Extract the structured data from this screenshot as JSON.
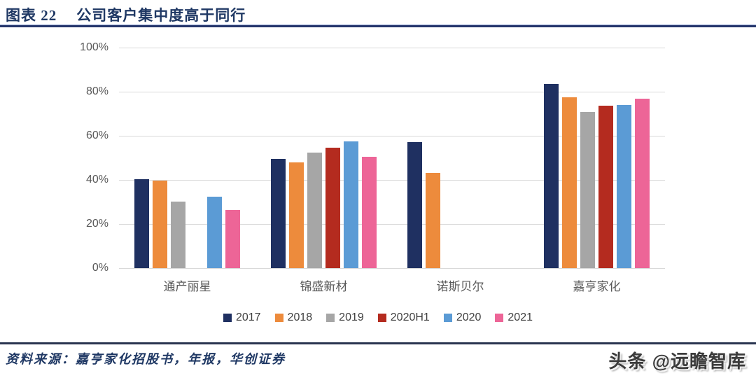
{
  "header": {
    "figure_label": "图表 22",
    "title": "公司客户集中度高于同行"
  },
  "chart_data": {
    "type": "bar",
    "title": "公司客户集中度高于同行",
    "categories": [
      "通产丽星",
      "锦盛新材",
      "诺斯贝尔",
      "嘉亨家化"
    ],
    "series": [
      {
        "name": "2017",
        "color": "#1f3061",
        "values": [
          40.3,
          49.6,
          57.3,
          83.5
        ]
      },
      {
        "name": "2018",
        "color": "#ed8b3c",
        "values": [
          39.7,
          48.0,
          43.1,
          77.4
        ]
      },
      {
        "name": "2019",
        "color": "#a6a6a6",
        "values": [
          30.2,
          52.5,
          null,
          70.8
        ]
      },
      {
        "name": "2020H1",
        "color": "#b42b1f",
        "values": [
          null,
          54.5,
          null,
          73.6
        ]
      },
      {
        "name": "2020",
        "color": "#5b9bd5",
        "values": [
          32.4,
          57.6,
          null,
          73.9
        ]
      },
      {
        "name": "2021",
        "color": "#ed6597",
        "values": [
          26.5,
          50.6,
          null,
          76.9
        ]
      }
    ],
    "yticks": [
      "0%",
      "20%",
      "40%",
      "60%",
      "80%",
      "100%"
    ],
    "ylim": [
      0,
      100
    ],
    "grid": true,
    "legend_position": "bottom"
  },
  "footer": {
    "source": "资料来源：嘉亨家化招股书，年报，华创证券",
    "watermark": "头条 @远瞻智库"
  },
  "colors": {
    "accent": "#1f3864",
    "grid": "#d9d9d9",
    "axis_text": "#595959",
    "divider_bottom": "#2a3550"
  }
}
